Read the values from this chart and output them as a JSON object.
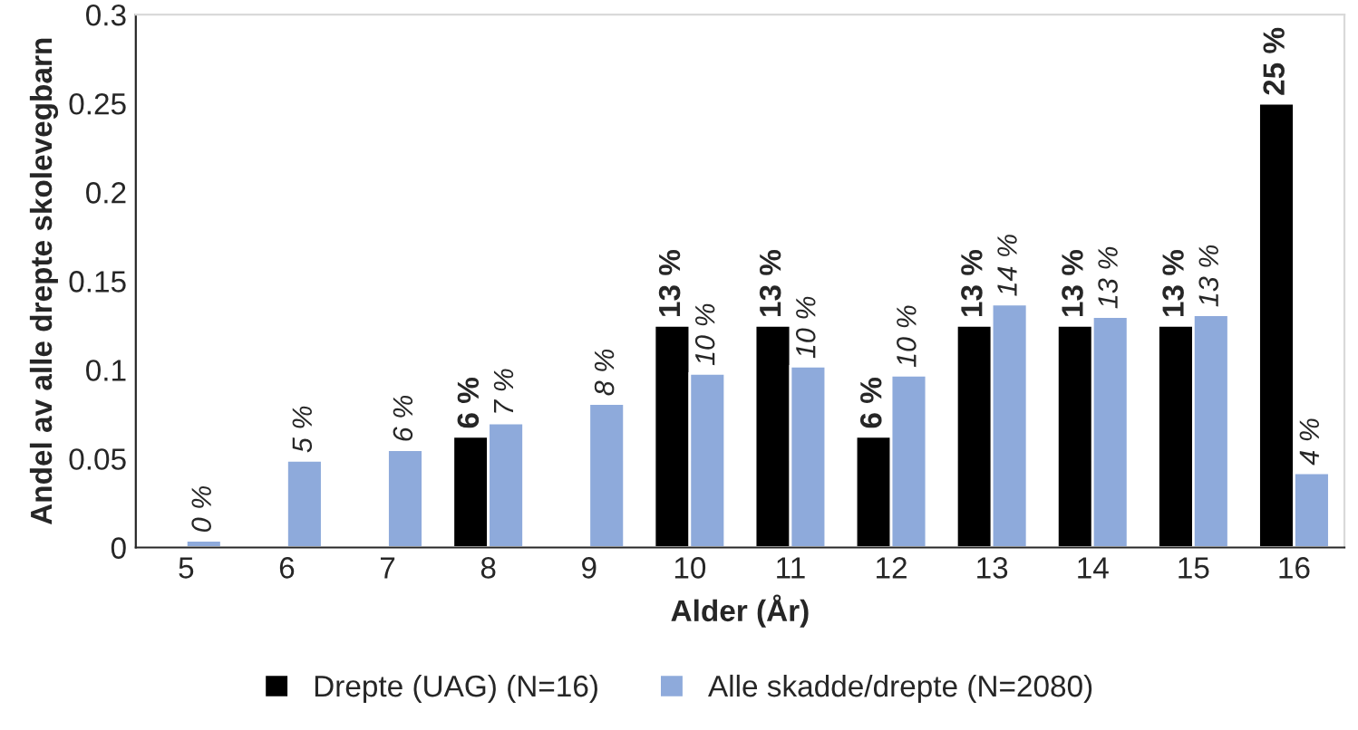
{
  "chart_data": {
    "type": "bar",
    "xlabel": "Alder (År)",
    "ylabel": "Andel av alle drepte skolevegbarn",
    "categories": [
      "5",
      "6",
      "7",
      "8",
      "9",
      "10",
      "11",
      "12",
      "13",
      "14",
      "15",
      "16"
    ],
    "series": [
      {
        "name": "Drepte (UAG) (N=16)",
        "color": "#000000",
        "values": [
          null,
          null,
          null,
          0.0625,
          null,
          0.125,
          0.125,
          0.0625,
          0.125,
          0.125,
          0.125,
          0.25
        ],
        "value_labels": [
          null,
          null,
          null,
          "6 %",
          null,
          "13 %",
          "13 %",
          "6 %",
          "13 %",
          "13 %",
          "13 %",
          "25 %"
        ]
      },
      {
        "name": "Alle skadde/drepte (N=2080)",
        "color": "#8eaadb",
        "values": [
          0.004,
          0.049,
          0.055,
          0.07,
          0.081,
          0.098,
          0.102,
          0.097,
          0.137,
          0.13,
          0.131,
          0.042
        ],
        "value_labels": [
          "0 %",
          "5 %",
          "6 %",
          "7 %",
          "8 %",
          "10 %",
          "10 %",
          "10 %",
          "14 %",
          "13 %",
          "13 %",
          "4 %"
        ]
      }
    ],
    "ylim": [
      0,
      0.3
    ],
    "yticks": [
      0,
      0.05,
      0.1,
      0.15,
      0.2,
      0.25,
      0.3
    ],
    "grid": false,
    "legend": "bottom"
  }
}
